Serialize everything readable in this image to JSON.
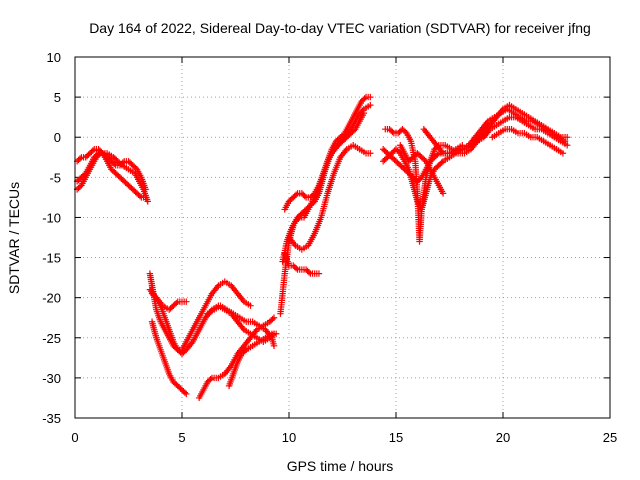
{
  "chart_data": {
    "type": "scatter",
    "title": "Day 164 of 2022, Sidereal Day-to-day VTEC variation (SDTVAR) for receiver jfng",
    "xlabel": "GPS time / hours",
    "ylabel": "SDTVAR / TECUs",
    "xlim": [
      0,
      25
    ],
    "ylim": [
      -35,
      10
    ],
    "xticks": [
      "0",
      "5",
      "10",
      "15",
      "20",
      "25"
    ],
    "yticks": [
      "10",
      "5",
      "0",
      "-5",
      "-10",
      "-15",
      "-20",
      "-25",
      "-30",
      "-35"
    ],
    "grid": true,
    "marker": "plus",
    "color": "#ff0000",
    "series": [
      {
        "x": [
          0.1,
          0.3,
          0.5,
          0.7,
          0.9,
          1.1,
          1.3,
          1.5,
          1.7,
          1.9,
          2.1,
          2.3,
          2.5,
          2.7,
          2.9,
          3.1,
          3.3
        ],
        "y": [
          -3.0,
          -2.5,
          -2.5,
          -2.0,
          -1.5,
          -1.5,
          -2.0,
          -3.0,
          -4.0,
          -4.5,
          -5.0,
          -5.5,
          -6.0,
          -6.5,
          -7.0,
          -7.5,
          -7.5
        ]
      },
      {
        "x": [
          0.1,
          0.3,
          0.5,
          0.7,
          0.9,
          1.1,
          1.3,
          1.5,
          1.7,
          1.9,
          2.1,
          2.3,
          2.5,
          2.7,
          2.9,
          3.1,
          3.3
        ],
        "y": [
          -5.5,
          -5.0,
          -4.5,
          -3.5,
          -2.5,
          -2.0,
          -2.0,
          -2.5,
          -3.0,
          -3.5,
          -3.5,
          -3.0,
          -3.0,
          -3.5,
          -4.0,
          -5.0,
          -6.5
        ]
      },
      {
        "x": [
          0.1,
          0.3,
          0.5,
          0.8,
          1.0,
          1.2,
          1.5,
          1.8,
          2.0,
          2.2,
          2.5,
          2.8,
          3.0,
          3.2,
          3.4
        ],
        "y": [
          -6.5,
          -6.0,
          -5.0,
          -3.5,
          -2.5,
          -2.0,
          -2.0,
          -2.5,
          -3.0,
          -3.5,
          -4.0,
          -4.5,
          -5.5,
          -6.5,
          -8.0
        ]
      },
      {
        "x": [
          3.5,
          3.6,
          3.7,
          3.8,
          4.0,
          4.2,
          4.4,
          4.6,
          4.8,
          5.0,
          5.2,
          5.5,
          5.8,
          6.1,
          6.4,
          6.7,
          7.0,
          7.3,
          7.6,
          7.9,
          8.2
        ],
        "y": [
          -17.0,
          -18.5,
          -20.0,
          -21.5,
          -23.0,
          -24.0,
          -25.0,
          -26.0,
          -26.5,
          -26.5,
          -25.5,
          -24.0,
          -22.5,
          -21.0,
          -19.5,
          -18.5,
          -18.0,
          -18.5,
          -19.5,
          -20.5,
          -21.0
        ]
      },
      {
        "x": [
          3.6,
          3.8,
          4.0,
          4.2,
          4.4,
          4.6,
          4.8,
          5.0,
          5.2,
          5.5,
          5.8,
          6.1,
          6.4,
          6.7,
          7.0,
          7.3,
          7.6,
          7.9,
          8.2,
          8.5,
          8.8,
          9.1,
          9.3
        ],
        "y": [
          -19.5,
          -20.0,
          -21.0,
          -22.5,
          -24.0,
          -25.5,
          -26.5,
          -27.0,
          -26.5,
          -25.5,
          -24.0,
          -22.5,
          -21.5,
          -21.0,
          -21.5,
          -22.0,
          -23.0,
          -24.0,
          -24.5,
          -25.0,
          -25.5,
          -25.0,
          -24.5
        ]
      },
      {
        "x": [
          3.5,
          3.8,
          4.1,
          4.4,
          4.6,
          4.8,
          5.0,
          5.2
        ],
        "y": [
          -19.0,
          -20.0,
          -21.0,
          -21.5,
          -21.0,
          -20.5,
          -20.5,
          -20.5
        ]
      },
      {
        "x": [
          3.6,
          3.8,
          4.0,
          4.2,
          4.4,
          4.6,
          4.8,
          5.0,
          5.2
        ],
        "y": [
          -23.0,
          -25.0,
          -26.5,
          -28.0,
          -29.5,
          -30.5,
          -31.0,
          -31.5,
          -32.0
        ]
      },
      {
        "x": [
          5.8,
          6.0,
          6.2,
          6.4,
          6.7,
          7.0,
          7.3,
          7.6,
          7.9,
          8.2,
          8.5,
          8.8,
          9.1,
          9.3
        ],
        "y": [
          -32.5,
          -31.5,
          -30.5,
          -30.0,
          -30.0,
          -29.5,
          -28.5,
          -27.0,
          -26.0,
          -25.0,
          -24.0,
          -23.5,
          -23.0,
          -22.5
        ]
      },
      {
        "x": [
          7.2,
          7.4,
          7.6,
          7.8,
          8.0,
          8.3,
          8.6,
          8.9,
          9.2,
          9.4
        ],
        "y": [
          -31.0,
          -29.5,
          -28.0,
          -27.0,
          -26.5,
          -26.0,
          -25.5,
          -25.0,
          -24.5,
          -24.5
        ]
      },
      {
        "x": [
          6.2,
          6.5,
          6.8,
          7.1,
          7.4,
          7.7,
          8.0,
          8.3,
          8.6,
          8.9,
          9.2,
          9.3
        ],
        "y": [
          -22.0,
          -21.5,
          -21.0,
          -21.5,
          -22.0,
          -22.5,
          -23.0,
          -23.0,
          -23.5,
          -24.0,
          -25.0,
          -26.0
        ]
      },
      {
        "x": [
          9.6,
          9.8,
          10.0,
          10.2,
          10.4,
          10.6,
          10.8,
          11.0,
          11.2,
          11.4,
          11.6,
          11.8,
          12.0,
          12.2,
          12.4,
          12.6,
          12.8,
          13.0,
          13.2,
          13.4,
          13.6,
          13.8
        ],
        "y": [
          -22.0,
          -17.0,
          -13.0,
          -11.0,
          -10.0,
          -9.5,
          -9.0,
          -8.5,
          -8.0,
          -7.0,
          -5.0,
          -3.0,
          -1.5,
          -0.5,
          0.0,
          0.5,
          1.5,
          2.5,
          3.5,
          4.5,
          5.0,
          5.0
        ]
      },
      {
        "x": [
          9.7,
          9.9,
          10.1,
          10.3,
          10.5,
          10.7,
          10.9,
          11.1,
          11.3,
          11.5,
          11.7,
          11.9,
          12.1,
          12.3,
          12.5,
          12.7,
          12.9,
          13.1,
          13.3,
          13.5
        ],
        "y": [
          -15.5,
          -13.0,
          -11.5,
          -10.5,
          -10.0,
          -10.0,
          -9.0,
          -8.0,
          -7.0,
          -5.5,
          -4.0,
          -2.5,
          -1.5,
          -1.0,
          -0.5,
          0.0,
          0.5,
          1.0,
          2.0,
          3.0
        ]
      },
      {
        "x": [
          9.8,
          10.0,
          10.2,
          10.4,
          10.6,
          10.8,
          11.0,
          11.2,
          11.4
        ],
        "y": [
          -14.5,
          -16.0,
          -16.0,
          -16.5,
          -16.5,
          -16.5,
          -17.0,
          -17.0,
          -17.0
        ]
      },
      {
        "x": [
          9.8,
          10.0,
          10.2,
          10.4,
          10.6,
          10.8,
          11.0,
          11.2,
          11.4,
          11.6,
          11.8,
          12.0,
          12.3,
          12.6,
          12.9,
          13.2,
          13.5,
          13.8
        ],
        "y": [
          -9.0,
          -8.0,
          -7.5,
          -7.0,
          -7.0,
          -7.5,
          -7.5,
          -7.0,
          -6.0,
          -4.5,
          -3.0,
          -2.0,
          -1.0,
          0.0,
          1.0,
          2.5,
          3.5,
          4.0
        ]
      },
      {
        "x": [
          10.0,
          10.3,
          10.6,
          10.9,
          11.2,
          11.5,
          11.8,
          12.1,
          12.4,
          12.7,
          13.0,
          13.3,
          13.6,
          13.8
        ],
        "y": [
          -12.5,
          -13.5,
          -14.0,
          -13.5,
          -12.0,
          -10.0,
          -7.0,
          -4.5,
          -2.5,
          -1.5,
          -1.0,
          -1.5,
          -2.0,
          -2.0
        ]
      },
      {
        "x": [
          14.4,
          14.6,
          14.8,
          15.0,
          15.2,
          15.4,
          15.6,
          15.8,
          16.0,
          16.2,
          16.4,
          16.6,
          16.8,
          17.0,
          17.3,
          17.6,
          17.9,
          18.2,
          18.5,
          18.8,
          19.1,
          19.4,
          19.7,
          20.0,
          20.3,
          20.6,
          20.9,
          21.2,
          21.5,
          21.8,
          22.1,
          22.4,
          22.7,
          23.0
        ],
        "y": [
          -1.5,
          -2.0,
          -2.5,
          -3.0,
          -3.5,
          -4.0,
          -4.5,
          -5.0,
          -5.5,
          -5.0,
          -4.0,
          -3.0,
          -2.5,
          -2.0,
          -2.0,
          -2.0,
          -1.5,
          -1.5,
          -1.0,
          -0.5,
          0.0,
          1.0,
          1.5,
          2.0,
          2.5,
          2.5,
          2.0,
          1.5,
          1.0,
          1.0,
          0.5,
          0.0,
          -0.5,
          -1.0
        ]
      },
      {
        "x": [
          14.4,
          14.6,
          14.8,
          15.0,
          15.2,
          15.4,
          15.6,
          15.8,
          16.0,
          16.2,
          16.4,
          16.6,
          16.8,
          17.0,
          17.2,
          17.5,
          17.8,
          18.1,
          18.4,
          18.7,
          19.0,
          19.3,
          19.6,
          19.9,
          20.2,
          20.5,
          20.8,
          21.1,
          21.4,
          21.7,
          22.0,
          22.3,
          22.6,
          22.9
        ],
        "y": [
          -3.0,
          -2.5,
          -2.0,
          -1.5,
          -2.0,
          -3.0,
          -4.0,
          -6.0,
          -8.0,
          -9.0,
          -7.0,
          -5.0,
          -4.0,
          -3.5,
          -3.0,
          -2.5,
          -2.0,
          -1.5,
          -1.0,
          0.0,
          1.0,
          2.0,
          2.5,
          3.0,
          3.5,
          3.0,
          2.5,
          2.0,
          2.0,
          1.5,
          1.0,
          0.5,
          0.0,
          -0.5
        ]
      },
      {
        "x": [
          14.5,
          14.7,
          14.9,
          15.1,
          15.3,
          15.5,
          15.7,
          15.9,
          16.0,
          16.1,
          16.2,
          16.4,
          16.6,
          16.8,
          17.0,
          17.3,
          17.6,
          17.9,
          18.2,
          18.5,
          18.8,
          19.1,
          19.4,
          19.7,
          20.0,
          20.3,
          20.6,
          20.9,
          21.2,
          21.5,
          21.8,
          22.1,
          22.4,
          22.7,
          23.0
        ],
        "y": [
          1.0,
          1.0,
          0.5,
          0.5,
          1.0,
          0.5,
          -0.5,
          -3.0,
          -7.0,
          -13.0,
          -9.0,
          -5.0,
          -3.0,
          -1.5,
          -1.0,
          -1.0,
          -1.5,
          -2.0,
          -2.0,
          -1.5,
          -0.5,
          0.5,
          1.5,
          2.5,
          3.5,
          4.0,
          3.5,
          3.0,
          2.5,
          2.0,
          1.5,
          1.0,
          0.5,
          0.0,
          0.0
        ]
      },
      {
        "x": [
          15.2,
          15.4,
          15.6,
          15.8,
          16.0,
          16.2,
          16.4,
          16.6,
          16.8,
          17.0,
          17.2
        ],
        "y": [
          -1.0,
          -2.0,
          -3.0,
          -2.5,
          -2.0,
          -2.5,
          -3.0,
          -4.0,
          -5.0,
          -6.0,
          -7.0
        ]
      },
      {
        "x": [
          16.3,
          16.6,
          16.9,
          17.2,
          17.5,
          17.8,
          18.1
        ],
        "y": [
          1.0,
          0.0,
          -1.0,
          -2.0,
          -2.0,
          -1.5,
          -1.0
        ]
      },
      {
        "x": [
          19.5,
          19.8,
          20.1,
          20.4,
          20.7,
          21.0,
          21.3,
          21.6,
          21.9,
          22.2,
          22.5,
          22.8
        ],
        "y": [
          0.0,
          0.5,
          1.0,
          1.0,
          0.5,
          0.5,
          0.0,
          0.0,
          -0.5,
          -1.0,
          -1.5,
          -2.0
        ]
      }
    ]
  }
}
